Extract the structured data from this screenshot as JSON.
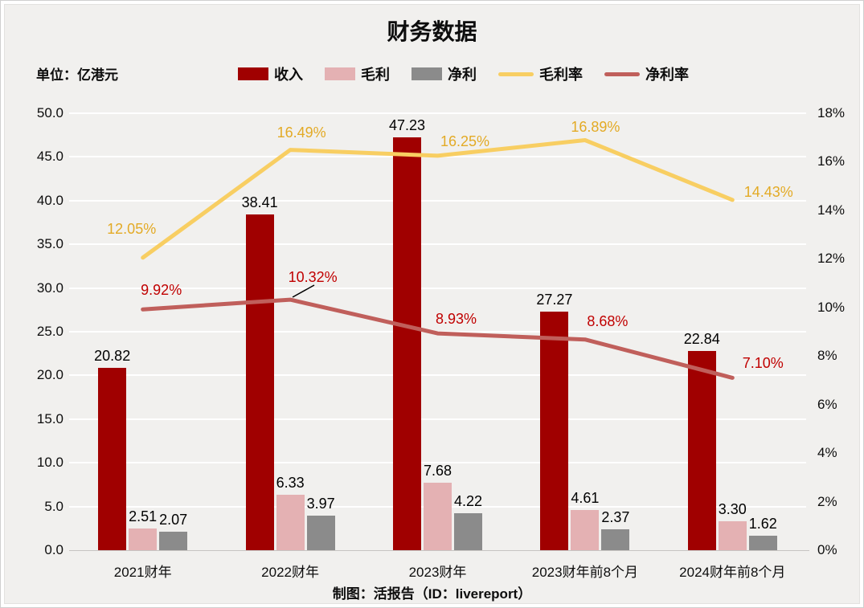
{
  "title": "财务数据",
  "unit_label": "单位：亿港元",
  "footer": "制图：活报告（ID：livereport）",
  "colors": {
    "background": "#f1f0ee",
    "gridline": "#ffffff",
    "revenue_bar": "#a00000",
    "gross_profit_bar": "#e4b1b3",
    "net_profit_bar": "#8b8b8b",
    "gross_margin_line": "#f8ce62",
    "gross_margin_label": "#e3aa25",
    "net_margin_line": "#c05f5b",
    "net_margin_label": "#c00000",
    "text": "#0d0d0d"
  },
  "legend": [
    {
      "label": "收入",
      "type": "bar",
      "color": "#a00000"
    },
    {
      "label": "毛利",
      "type": "bar",
      "color": "#e4b1b3"
    },
    {
      "label": "净利",
      "type": "bar",
      "color": "#8b8b8b"
    },
    {
      "label": "毛利率",
      "type": "line",
      "color": "#f8ce62"
    },
    {
      "label": "净利率",
      "type": "line",
      "color": "#c05f5b"
    }
  ],
  "chart_data": {
    "type": "bar",
    "subtype": "grouped bars + two percentage lines (combo chart, dual axis)",
    "title": "财务数据",
    "categories": [
      "2021财年",
      "2022财年",
      "2023财年",
      "2023财年前8个月",
      "2024财年前8个月"
    ],
    "series": [
      {
        "name": "收入",
        "axis": "left",
        "kind": "bar",
        "color": "#a00000",
        "values": [
          20.82,
          38.41,
          47.23,
          27.27,
          22.84
        ],
        "labels": [
          "20.82",
          "38.41",
          "47.23",
          "27.27",
          "22.84"
        ]
      },
      {
        "name": "毛利",
        "axis": "left",
        "kind": "bar",
        "color": "#e4b1b3",
        "values": [
          2.51,
          6.33,
          7.68,
          4.61,
          3.3
        ],
        "labels": [
          "2.51",
          "6.33",
          "7.68",
          "4.61",
          "3.30"
        ]
      },
      {
        "name": "净利",
        "axis": "left",
        "kind": "bar",
        "color": "#8b8b8b",
        "values": [
          2.07,
          3.97,
          4.22,
          2.37,
          1.62
        ],
        "labels": [
          "2.07",
          "3.97",
          "4.22",
          "2.37",
          "1.62"
        ]
      },
      {
        "name": "毛利率",
        "axis": "right",
        "kind": "line",
        "color": "#f8ce62",
        "label_color": "#e3aa25",
        "values": [
          12.05,
          16.49,
          16.25,
          16.89,
          14.43
        ],
        "labels": [
          "12.05%",
          "16.49%",
          "16.25%",
          "16.89%",
          "14.43%"
        ]
      },
      {
        "name": "净利率",
        "axis": "right",
        "kind": "line",
        "color": "#c05f5b",
        "label_color": "#c00000",
        "values": [
          9.92,
          10.32,
          8.93,
          8.68,
          7.1
        ],
        "labels": [
          "9.92%",
          "10.32%",
          "8.93%",
          "8.68%",
          "7.10%"
        ]
      }
    ],
    "left_axis": {
      "min": 0,
      "max": 50,
      "step": 5,
      "tick_labels": [
        "0.0",
        "5.0",
        "10.0",
        "15.0",
        "20.0",
        "25.0",
        "30.0",
        "35.0",
        "40.0",
        "45.0",
        "50.0"
      ]
    },
    "right_axis": {
      "min": 0,
      "max": 18,
      "step": 2,
      "tick_labels": [
        "0%",
        "2%",
        "4%",
        "6%",
        "8%",
        "10%",
        "12%",
        "14%",
        "16%",
        "18%"
      ]
    },
    "grid": "horizontal white gridlines at left-axis intervals",
    "legend_position": "top",
    "annotation": "10.32% label connected to its data point with a short black leader line"
  }
}
